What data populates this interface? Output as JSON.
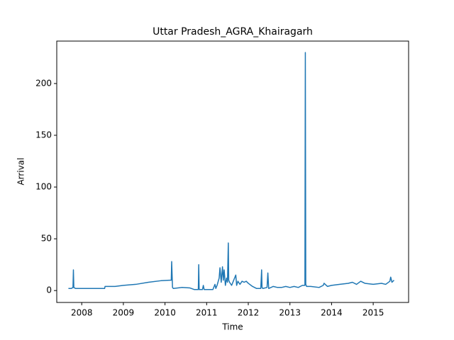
{
  "chart_data": {
    "type": "line",
    "title": "Uttar Pradesh_AGRA_Khairagarh",
    "x_label": "Time",
    "y_label": "Arrival",
    "xlim": [
      2007.4,
      2015.85
    ],
    "ylim": [
      -11.5,
      241
    ],
    "xticks": [
      {
        "value": 2008,
        "label": "2008"
      },
      {
        "value": 2009,
        "label": "2009"
      },
      {
        "value": 2010,
        "label": "2010"
      },
      {
        "value": 2011,
        "label": "2011"
      },
      {
        "value": 2012,
        "label": "2012"
      },
      {
        "value": 2013,
        "label": "2013"
      },
      {
        "value": 2014,
        "label": "2014"
      },
      {
        "value": 2015,
        "label": "2015"
      }
    ],
    "yticks": [
      0,
      50,
      100,
      150,
      200
    ],
    "series": [
      {
        "name": "Arrival",
        "color": "#1f77b4",
        "x": [
          2007.68,
          2007.75,
          2007.79,
          2007.8,
          2007.81,
          2007.85,
          2008.0,
          2008.2,
          2008.4,
          2008.55,
          2008.56,
          2008.8,
          2009.0,
          2009.3,
          2009.6,
          2009.9,
          2010.1,
          2010.15,
          2010.16,
          2010.18,
          2010.2,
          2010.4,
          2010.6,
          2010.7,
          2010.8,
          2010.81,
          2010.82,
          2010.84,
          2010.9,
          2010.92,
          2010.94,
          2011.05,
          2011.15,
          2011.2,
          2011.22,
          2011.25,
          2011.3,
          2011.32,
          2011.35,
          2011.38,
          2011.4,
          2011.42,
          2011.45,
          2011.48,
          2011.5,
          2011.52,
          2011.53,
          2011.55,
          2011.6,
          2011.65,
          2011.7,
          2011.72,
          2011.75,
          2011.8,
          2011.85,
          2011.9,
          2011.95,
          2012.0,
          2012.1,
          2012.2,
          2012.3,
          2012.32,
          2012.33,
          2012.35,
          2012.45,
          2012.47,
          2012.49,
          2012.6,
          2012.7,
          2012.8,
          2012.9,
          2013.0,
          2013.1,
          2013.2,
          2013.3,
          2013.36,
          2013.37,
          2013.38,
          2013.4,
          2013.5,
          2013.7,
          2013.8,
          2013.82,
          2013.9,
          2014.0,
          2014.2,
          2014.4,
          2014.5,
          2014.6,
          2014.7,
          2014.8,
          2015.0,
          2015.2,
          2015.3,
          2015.4,
          2015.42,
          2015.45,
          2015.5
        ],
        "values": [
          2,
          2,
          3,
          20,
          3,
          2,
          2,
          2,
          2,
          2,
          4,
          4,
          5,
          6,
          8,
          9.5,
          10,
          10,
          28,
          3,
          2,
          3,
          2.5,
          1,
          1,
          25,
          1,
          1,
          1,
          5,
          1,
          1,
          1,
          6,
          2,
          5,
          12,
          22,
          8,
          23,
          10,
          20,
          5,
          12,
          8,
          46,
          10,
          8,
          5,
          10,
          15,
          5,
          9,
          6,
          9,
          8,
          9,
          7,
          4,
          2,
          2,
          20,
          3,
          2,
          3,
          17,
          2,
          4,
          3,
          3,
          4,
          3,
          4,
          3,
          5,
          5,
          230,
          6,
          4,
          4,
          3,
          5,
          7,
          4,
          5,
          6,
          7,
          8,
          6,
          9,
          7,
          6,
          7,
          6,
          9,
          13,
          8,
          10
        ]
      }
    ]
  }
}
